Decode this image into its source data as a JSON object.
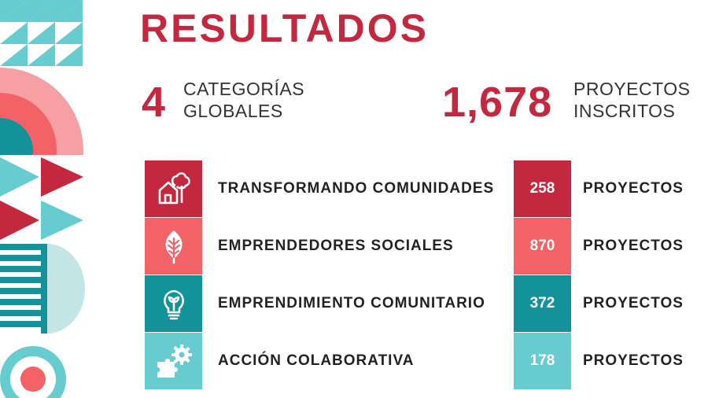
{
  "header": {
    "title": "RESULTADOS"
  },
  "stats": [
    {
      "value": "4",
      "label_line1": "CATEGORÍAS",
      "label_line2": "GLOBALES"
    },
    {
      "value": "1,678",
      "label_line1": "PROYECTOS",
      "label_line2": "INSCRITOS"
    }
  ],
  "categories": [
    {
      "label": "TRANSFORMANDO COMUNIDADES",
      "count": "258",
      "unit": "PROYECTOS",
      "color": "#c4283f",
      "icon": "house-tree-icon"
    },
    {
      "label": "EMPRENDEDORES SOCIALES",
      "count": "870",
      "unit": "PROYECTOS",
      "color": "#f36266",
      "icon": "leaf-icon"
    },
    {
      "label": "EMPRENDIMIENTO COMUNITARIO",
      "count": "372",
      "unit": "PROYECTOS",
      "color": "#14929a",
      "icon": "lightbulb-sprout-icon"
    },
    {
      "label": "ACCIÓN COLABORATIVA",
      "count": "178",
      "unit": "PROYECTOS",
      "color": "#67ccd0",
      "icon": "puzzle-gear-icon"
    }
  ],
  "colors": {
    "primary": "#c4283f",
    "coral": "#f36266",
    "pink": "#f7a0a3",
    "teal": "#14929a",
    "aqua": "#67ccd0",
    "pale": "#c4e5e6"
  }
}
